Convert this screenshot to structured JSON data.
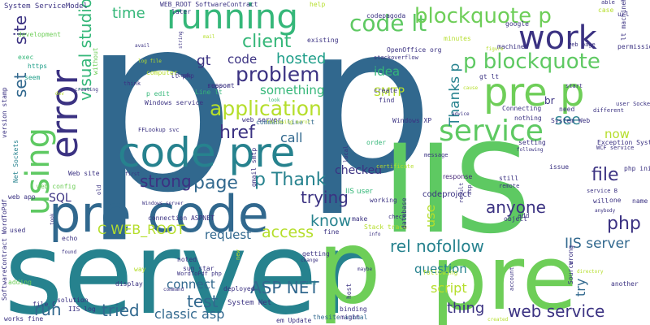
{
  "colors": {
    "navy": "#3b3282",
    "teal": "#26828e",
    "blue": "#31688e",
    "green": "#5ec962",
    "lime": "#b5de2b",
    "purple": "#482878",
    "dark": "#440154",
    "sea": "#1f9e89",
    "mint": "#6ece58",
    "aqua": "#35b779"
  },
  "words": [
    "p",
    "p",
    "IIS",
    "server",
    "pre",
    "code pre",
    "pre code",
    "p",
    "pre p",
    "error",
    "running",
    "using",
    "work",
    "service",
    "code lt",
    "blockquote p",
    "p blockquote",
    "application",
    "problem",
    "client",
    "hosted",
    "visual studio",
    "href",
    "page",
    "p Thank",
    "trying",
    "strong",
    "know",
    "access",
    "anyone",
    "file",
    "php",
    "rel nofollow",
    "IIS server",
    "web service",
    "ASP NET",
    "tried",
    "test",
    "classic asp",
    "run",
    "question",
    "thing",
    "script",
    "connect",
    "request",
    "C WEB_ROOT",
    "time",
    "site",
    "set",
    "SQL",
    "gt",
    "code",
    "idea",
    "SMTP",
    "Thanks p",
    "see",
    "now",
    "checked",
    "call",
    "something",
    "use",
    "IIS user",
    "br",
    "try",
    "response",
    "codeproject",
    "System ServiceModel",
    "WEB_ROOT SoftwareContract",
    "development",
    "exec",
    "https",
    "seem",
    "version stamp",
    "web config",
    "web app",
    "used",
    "Net Sockets",
    "SoftwareContract WordToPdf",
    "adding",
    "display",
    "deployed",
    "noted",
    "sun star",
    "gt Line",
    "host",
    "System Net",
    "thesite animal",
    "em Update",
    "works fine",
    "file C",
    "IIS log",
    "solution",
    "lt php",
    "p edit",
    "Windows service",
    "Line lt",
    "web server",
    "command line lt",
    "Windows XP",
    "System Web",
    "Exception System",
    "WCF service",
    "service B",
    "issue",
    "setting",
    "still",
    "object",
    "add",
    "will",
    "one",
    "name",
    "php ini",
    "another",
    "wrong",
    "Source",
    "fine",
    "Stack trace",
    "getting",
    "following",
    "database",
    "minutes",
    "machine",
    "google",
    "url",
    "permission",
    "case",
    "able",
    "lt machineKey",
    "different",
    "user Sockets Socket",
    "gt lt",
    "start",
    "need",
    "nothing",
    "Connecting",
    "create",
    "find",
    "OpenOffice org",
    "stackoverflow",
    "codepagoda",
    "figure",
    "web page",
    "help",
    "later",
    "avail",
    "string",
    "without",
    "existing",
    "log file",
    "think",
    "computer",
    "look",
    "support",
    "look",
    "reason",
    "following error",
    "local",
    "gmail smtp",
    "order",
    "message",
    "working",
    "certificate",
    "remote",
    "asp",
    "result",
    "check",
    "make",
    "binding",
    "might",
    "maybe",
    "change",
    "info",
    "new",
    "way",
    "found",
    "echo",
    "connection ASPNET",
    "Windows server",
    "command",
    "WordToPdf php",
    "FFLookup svc",
    "old",
    "first",
    "Web site",
    "took",
    "creating",
    "dev",
    "mail",
    "cause",
    "advice",
    "directory",
    "account",
    "created",
    "anybody",
    "following"
  ]
}
